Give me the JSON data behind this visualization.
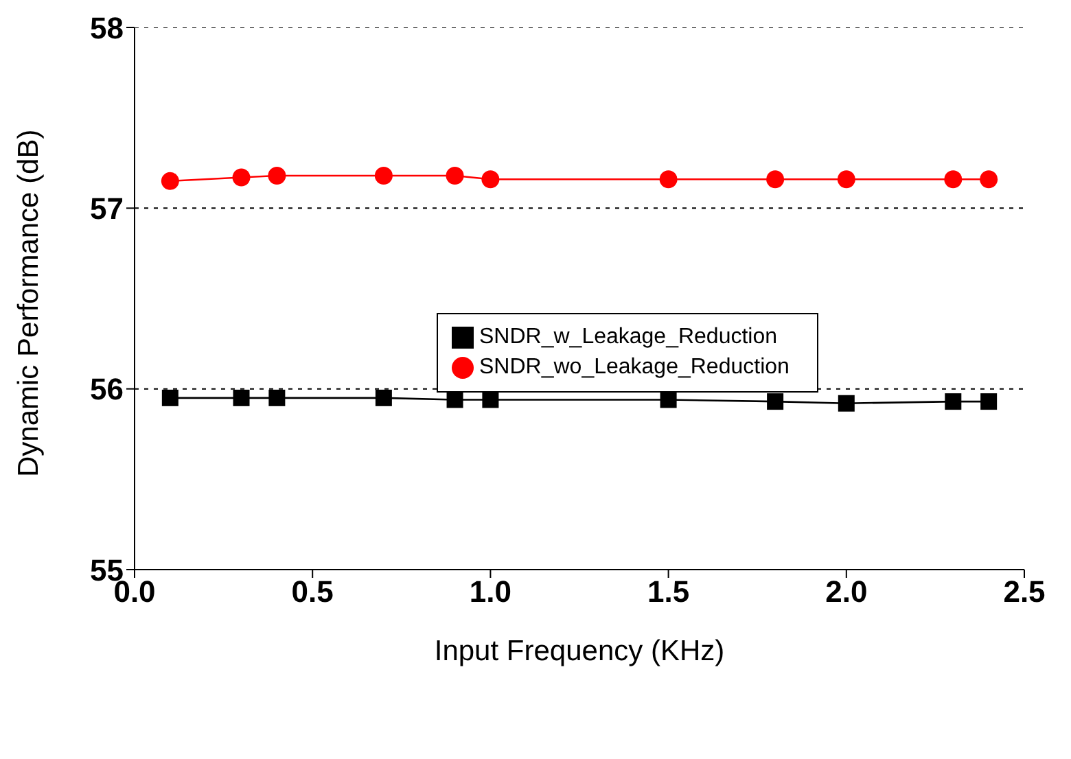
{
  "chart_data": {
    "type": "line",
    "xlabel": "Input Frequency (KHz)",
    "ylabel": "Dynamic Performance (dB)",
    "x": [
      0.1,
      0.3,
      0.4,
      0.7,
      0.9,
      1.0,
      1.5,
      1.8,
      2.0,
      2.3,
      2.4
    ],
    "series": [
      {
        "name": "SNDR_w_Leakage_Reduction",
        "color": "#000000",
        "marker": "square",
        "values": [
          55.95,
          55.95,
          55.95,
          55.95,
          55.94,
          55.94,
          55.94,
          55.93,
          55.92,
          55.93,
          55.93
        ]
      },
      {
        "name": "SNDR_wo_Leakage_Reduction",
        "color": "#ff0000",
        "marker": "circle",
        "values": [
          57.15,
          57.17,
          57.18,
          57.18,
          57.18,
          57.16,
          57.16,
          57.16,
          57.16,
          57.16,
          57.16
        ]
      }
    ],
    "xlim": [
      0,
      2.5
    ],
    "xticks": [
      {
        "value": 0,
        "label": "0.0"
      },
      0.5,
      {
        "value": 1,
        "label": "1.0"
      },
      1.5,
      {
        "value": 2,
        "label": "2.0"
      },
      2.5
    ],
    "ylim": [
      55,
      58
    ],
    "yticks": [
      55,
      56,
      57,
      58
    ],
    "grid": "y",
    "legend": "center",
    "line_style": "solid"
  }
}
